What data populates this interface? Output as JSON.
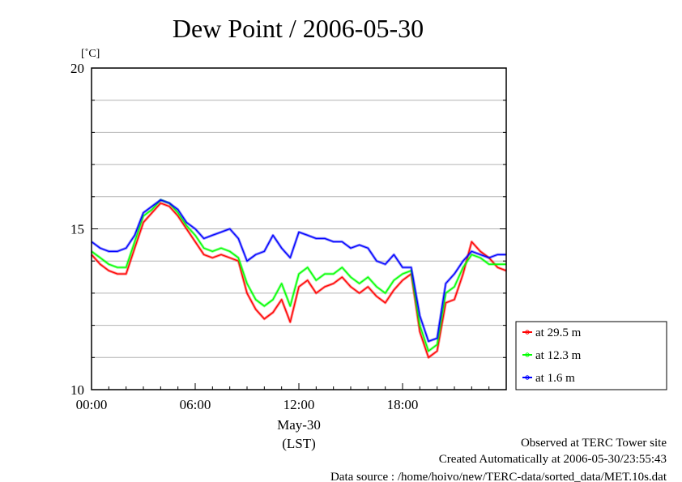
{
  "chart_data": {
    "type": "line",
    "title": "Dew Point / 2006-05-30",
    "ylabel_unit": "[˚C]",
    "xlabel": "May-30",
    "xlabel_sub": "(LST)",
    "x_tick_labels": [
      "00:00",
      "06:00",
      "12:00",
      "18:00"
    ],
    "y_tick_labels": [
      "10",
      "15",
      "20"
    ],
    "x_ticks_hours": [
      0,
      6,
      12,
      18
    ],
    "y_ticks": [
      10,
      15,
      20
    ],
    "xlim_hours": [
      0,
      24
    ],
    "ylim": [
      10,
      20
    ],
    "grid": true,
    "legend_position": "right-lower",
    "x": [
      0,
      0.5,
      1,
      1.5,
      2,
      2.5,
      3,
      3.5,
      4,
      4.5,
      5,
      5.5,
      6,
      6.5,
      7,
      7.5,
      8,
      8.5,
      9,
      9.5,
      10,
      10.5,
      11,
      11.5,
      12,
      12.5,
      13,
      13.5,
      14,
      14.5,
      15,
      15.5,
      16,
      16.5,
      17,
      17.5,
      18,
      18.5,
      19,
      19.5,
      20,
      20.5,
      21,
      21.5,
      22,
      22.5,
      23,
      23.5,
      24
    ],
    "series": [
      {
        "name": "at 29.5 m",
        "color": "#ff0000",
        "values": [
          14.2,
          13.9,
          13.7,
          13.6,
          13.6,
          14.4,
          15.2,
          15.5,
          15.8,
          15.7,
          15.4,
          15.0,
          14.6,
          14.2,
          14.1,
          14.2,
          14.1,
          14.0,
          13.0,
          12.5,
          12.2,
          12.4,
          12.8,
          12.1,
          13.2,
          13.4,
          13.0,
          13.2,
          13.3,
          13.5,
          13.2,
          13.0,
          13.2,
          12.9,
          12.7,
          13.1,
          13.4,
          13.6,
          11.8,
          11.0,
          11.2,
          12.7,
          12.8,
          13.6,
          14.6,
          14.3,
          14.1,
          13.8,
          13.7
        ]
      },
      {
        "name": "at 12.3 m",
        "color": "#00ff00",
        "values": [
          14.3,
          14.1,
          13.9,
          13.8,
          13.8,
          14.6,
          15.4,
          15.6,
          15.9,
          15.8,
          15.5,
          15.1,
          14.8,
          14.4,
          14.3,
          14.4,
          14.3,
          14.1,
          13.3,
          12.8,
          12.6,
          12.8,
          13.3,
          12.6,
          13.6,
          13.8,
          13.4,
          13.6,
          13.6,
          13.8,
          13.5,
          13.3,
          13.5,
          13.2,
          13.0,
          13.4,
          13.6,
          13.7,
          12.0,
          11.2,
          11.4,
          13.0,
          13.2,
          13.8,
          14.2,
          14.1,
          13.9,
          13.9,
          13.9
        ]
      },
      {
        "name": "at 1.6 m",
        "color": "#0000ff",
        "values": [
          14.6,
          14.4,
          14.3,
          14.3,
          14.4,
          14.8,
          15.5,
          15.7,
          15.9,
          15.8,
          15.6,
          15.2,
          15.0,
          14.7,
          14.8,
          14.9,
          15.0,
          14.7,
          14.0,
          14.2,
          14.3,
          14.8,
          14.4,
          14.1,
          14.9,
          14.8,
          14.7,
          14.7,
          14.6,
          14.6,
          14.4,
          14.5,
          14.4,
          14.0,
          13.9,
          14.2,
          13.8,
          13.8,
          12.3,
          11.5,
          11.6,
          13.3,
          13.6,
          14.0,
          14.3,
          14.2,
          14.1,
          14.2,
          14.2
        ]
      }
    ]
  },
  "footer": {
    "line1": "Observed at TERC Tower site",
    "line2": "Created Automatically at 2006-05-30/23:55:43",
    "line3": "Data source : /home/hoivo/new/TERC-data/sorted_data/MET.10s.dat"
  }
}
